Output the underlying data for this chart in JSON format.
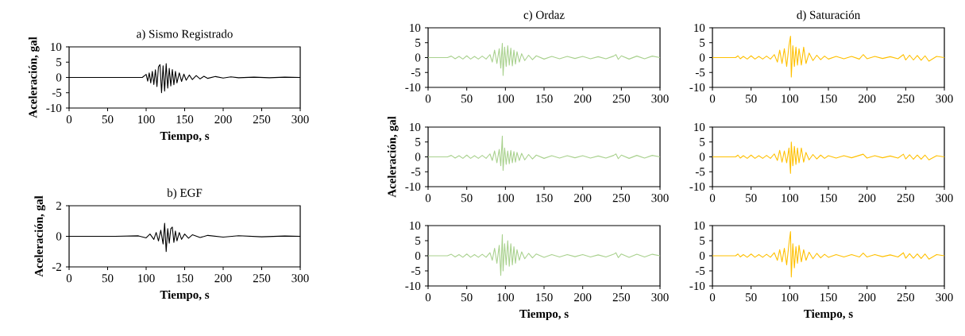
{
  "chart_data": [
    {
      "type": "line",
      "title": "a) Sismo Registrado",
      "xlabel": "Tiempo, s",
      "ylabel": "Aceleración, gal",
      "xlim": [
        0,
        300
      ],
      "ylim": [
        -10,
        10
      ],
      "xticks": [
        0,
        50,
        100,
        150,
        200,
        250,
        300
      ],
      "yticks": [
        -10,
        -5,
        0,
        5,
        10
      ],
      "series": [
        {
          "color": "#000000",
          "x": [
            0,
            95,
            100,
            102,
            104,
            106,
            108,
            110,
            112,
            114,
            116,
            118,
            120,
            122,
            124,
            126,
            128,
            130,
            132,
            134,
            136,
            138,
            140,
            143,
            146,
            149,
            152,
            156,
            160,
            165,
            170,
            175,
            180,
            190,
            200,
            210,
            220,
            240,
            260,
            280,
            300
          ],
          "values": [
            0,
            0,
            1.0,
            -1.2,
            1.5,
            -1.8,
            2.0,
            -2.3,
            2.5,
            -3.0,
            3.5,
            4.2,
            -5.0,
            3.8,
            -4.5,
            4.5,
            -3.5,
            3.0,
            -2.8,
            2.6,
            -2.4,
            2.0,
            -1.8,
            1.5,
            -1.3,
            1.1,
            -0.9,
            0.8,
            -0.7,
            0.6,
            -0.5,
            0.4,
            -0.3,
            0.3,
            -0.2,
            0.2,
            -0.1,
            0.1,
            -0.1,
            0.1,
            0
          ]
        }
      ]
    },
    {
      "type": "line",
      "title": "b) EGF",
      "xlabel": "Tiempo, s",
      "ylabel": "Aceleración, gal",
      "xlim": [
        0,
        300
      ],
      "ylim": [
        -2,
        2
      ],
      "xticks": [
        0,
        50,
        100,
        150,
        200,
        250,
        300
      ],
      "yticks": [
        -2,
        0,
        2
      ],
      "series": [
        {
          "color": "#000000",
          "x": [
            0,
            60,
            90,
            100,
            105,
            110,
            113,
            116,
            119,
            122,
            124,
            126,
            128,
            130,
            132,
            134,
            136,
            138,
            140,
            143,
            146,
            150,
            155,
            160,
            170,
            180,
            200,
            220,
            250,
            280,
            300
          ],
          "values": [
            0,
            0,
            0.03,
            -0.1,
            0.15,
            -0.2,
            0.25,
            -0.3,
            0.4,
            -0.5,
            0.85,
            -1.0,
            0.5,
            -0.45,
            0.5,
            0.6,
            -0.4,
            0.35,
            -0.3,
            0.25,
            -0.2,
            0.15,
            -0.12,
            0.1,
            -0.08,
            0.06,
            -0.05,
            0.04,
            -0.03,
            0.02,
            0
          ]
        }
      ]
    },
    {
      "type": "line",
      "title": "c) Ordaz",
      "xlim": [
        0,
        300
      ],
      "ylim": [
        -10,
        10
      ],
      "xticks": [
        0,
        50,
        100,
        150,
        200,
        250,
        300
      ],
      "yticks": [
        -10,
        -5,
        0,
        5,
        10
      ],
      "series": [
        {
          "color": "#a9d18e",
          "x": [
            0,
            25,
            30,
            35,
            40,
            45,
            50,
            55,
            60,
            65,
            70,
            75,
            80,
            83,
            86,
            89,
            92,
            94,
            96,
            97,
            99,
            101,
            103,
            105,
            107,
            109,
            111,
            113,
            115,
            118,
            121,
            125,
            130,
            135,
            140,
            150,
            160,
            170,
            180,
            190,
            200,
            210,
            220,
            230,
            240,
            243,
            246,
            250,
            260,
            270,
            280,
            290,
            300
          ],
          "values": [
            0,
            0,
            0.5,
            -0.4,
            0.4,
            -0.5,
            0.6,
            -0.5,
            0.4,
            -0.5,
            0.5,
            -0.5,
            1.0,
            -1.5,
            2.5,
            -2.0,
            3.0,
            -3.5,
            4.8,
            -6.0,
            3.5,
            -3.0,
            4.0,
            -2.5,
            3.2,
            -2.8,
            2.5,
            -2.2,
            2.0,
            -1.5,
            1.3,
            -1.0,
            0.8,
            -0.7,
            0.6,
            -0.5,
            0.4,
            -0.4,
            0.4,
            -0.3,
            0.4,
            -0.4,
            0.3,
            -0.4,
            0.5,
            1.0,
            -0.6,
            0.6,
            -0.5,
            0.5,
            -0.4,
            0.5,
            0
          ]
        }
      ]
    },
    {
      "type": "line",
      "ylabel": "Aceleración, gal",
      "xlim": [
        0,
        300
      ],
      "ylim": [
        -10,
        10
      ],
      "xticks": [
        0,
        50,
        100,
        150,
        200,
        250,
        300
      ],
      "yticks": [
        -10,
        -5,
        0,
        5,
        10
      ],
      "series": [
        {
          "color": "#a9d18e",
          "x": [
            0,
            25,
            30,
            35,
            40,
            45,
            50,
            55,
            60,
            65,
            70,
            75,
            80,
            83,
            86,
            89,
            92,
            94,
            96,
            97,
            99,
            101,
            103,
            105,
            107,
            109,
            111,
            113,
            115,
            118,
            121,
            125,
            130,
            135,
            140,
            150,
            160,
            170,
            180,
            190,
            200,
            210,
            220,
            230,
            240,
            243,
            246,
            250,
            260,
            270,
            280,
            290,
            300
          ],
          "values": [
            0,
            0,
            0.5,
            -0.4,
            0.4,
            -0.5,
            0.6,
            -0.5,
            0.4,
            -0.5,
            0.5,
            -0.5,
            1.0,
            -1.2,
            2.0,
            -2.0,
            2.5,
            -3.0,
            7.0,
            -4.5,
            3.0,
            -2.5,
            2.0,
            -2.3,
            2.2,
            -2.0,
            1.8,
            -1.8,
            1.5,
            -1.2,
            1.2,
            -1.0,
            0.8,
            -0.7,
            0.6,
            -0.5,
            0.4,
            -0.4,
            0.4,
            -0.3,
            0.4,
            -0.4,
            0.3,
            -0.4,
            0.5,
            1.0,
            -0.6,
            0.6,
            -0.5,
            0.5,
            -0.4,
            0.5,
            0
          ]
        }
      ]
    },
    {
      "type": "line",
      "xlabel": "Tiempo, s",
      "xlim": [
        0,
        300
      ],
      "ylim": [
        -10,
        10
      ],
      "xticks": [
        0,
        50,
        100,
        150,
        200,
        250,
        300
      ],
      "yticks": [
        -10,
        -5,
        0,
        5,
        10
      ],
      "series": [
        {
          "color": "#a9d18e",
          "x": [
            0,
            25,
            30,
            35,
            40,
            45,
            50,
            55,
            60,
            65,
            70,
            75,
            80,
            83,
            86,
            89,
            92,
            94,
            96,
            97,
            99,
            101,
            103,
            105,
            107,
            109,
            111,
            113,
            115,
            118,
            121,
            125,
            130,
            135,
            140,
            150,
            160,
            170,
            180,
            190,
            200,
            210,
            220,
            230,
            240,
            243,
            246,
            250,
            260,
            270,
            280,
            290,
            300
          ],
          "values": [
            0,
            0,
            0.5,
            -0.4,
            0.4,
            -0.5,
            0.6,
            -0.5,
            0.4,
            -0.5,
            0.5,
            -0.5,
            1.0,
            -1.5,
            2.5,
            -2.5,
            3.5,
            -6.5,
            7.0,
            -5.0,
            4.0,
            -3.0,
            5.0,
            -3.5,
            4.0,
            -3.0,
            3.0,
            -2.5,
            2.0,
            -1.5,
            1.3,
            -1.0,
            0.8,
            -0.7,
            0.6,
            -0.5,
            0.4,
            -0.4,
            0.4,
            -0.3,
            0.4,
            -0.4,
            0.3,
            -0.4,
            0.5,
            1.0,
            -0.6,
            0.6,
            -0.5,
            0.5,
            -0.4,
            0.5,
            0
          ]
        }
      ]
    },
    {
      "type": "line",
      "title": "d) Saturación",
      "xlim": [
        0,
        300
      ],
      "ylim": [
        -10,
        10
      ],
      "xticks": [
        0,
        50,
        100,
        150,
        200,
        250,
        300
      ],
      "yticks": [
        -10,
        -5,
        0,
        5,
        10
      ],
      "series": [
        {
          "color": "#ffc000",
          "x": [
            0,
            30,
            33,
            36,
            40,
            45,
            50,
            55,
            60,
            65,
            70,
            75,
            80,
            84,
            87,
            90,
            93,
            96,
            99,
            101,
            102,
            104,
            106,
            108,
            110,
            112,
            115,
            118,
            121,
            125,
            130,
            135,
            140,
            145,
            150,
            160,
            170,
            180,
            190,
            195,
            200,
            210,
            220,
            230,
            240,
            247,
            250,
            255,
            260,
            265,
            270,
            275,
            280,
            290,
            300
          ],
          "values": [
            0,
            0,
            0.6,
            -0.4,
            0.4,
            -0.5,
            0.6,
            -0.5,
            0.4,
            -0.5,
            0.5,
            -0.5,
            1.0,
            -1.5,
            2.5,
            -2.0,
            3.0,
            -3.0,
            4.0,
            7.2,
            -6.5,
            4.0,
            -3.0,
            3.5,
            -2.5,
            3.0,
            -2.5,
            3.5,
            -2.0,
            1.5,
            -1.0,
            0.8,
            -0.7,
            0.5,
            -0.5,
            0.4,
            -0.4,
            0.4,
            -0.5,
            1.0,
            -0.4,
            0.4,
            -0.3,
            0.3,
            -0.4,
            1.0,
            -0.8,
            0.8,
            -0.8,
            0.7,
            -0.9,
            0.6,
            -1.2,
            0.4,
            0
          ]
        }
      ]
    },
    {
      "type": "line",
      "xlim": [
        0,
        300
      ],
      "ylim": [
        -10,
        10
      ],
      "xticks": [
        0,
        50,
        100,
        150,
        200,
        250,
        300
      ],
      "yticks": [
        -10,
        -5,
        0,
        5,
        10
      ],
      "series": [
        {
          "color": "#ffc000",
          "x": [
            0,
            30,
            33,
            36,
            40,
            45,
            50,
            55,
            60,
            65,
            70,
            75,
            80,
            84,
            87,
            90,
            93,
            96,
            99,
            101,
            102,
            104,
            106,
            108,
            110,
            112,
            115,
            118,
            121,
            125,
            130,
            135,
            140,
            145,
            150,
            160,
            170,
            180,
            190,
            195,
            200,
            210,
            220,
            230,
            240,
            247,
            250,
            255,
            260,
            265,
            270,
            275,
            280,
            290,
            300
          ],
          "values": [
            0,
            0,
            0.6,
            -0.4,
            0.4,
            -0.5,
            0.6,
            -0.5,
            0.4,
            -0.5,
            0.5,
            -0.5,
            1.0,
            -1.2,
            2.2,
            -1.8,
            2.0,
            -2.0,
            3.0,
            -5.5,
            5.0,
            -3.0,
            3.5,
            -2.5,
            3.0,
            -2.0,
            3.0,
            -1.8,
            1.5,
            -1.0,
            0.8,
            -0.7,
            0.6,
            -0.5,
            0.4,
            -0.4,
            0.4,
            -0.3,
            0.5,
            0.9,
            -0.4,
            0.4,
            -0.3,
            0.3,
            -0.4,
            0.9,
            -0.7,
            0.7,
            -0.8,
            0.6,
            -0.8,
            0.6,
            -1.0,
            0.4,
            0
          ]
        }
      ]
    },
    {
      "type": "line",
      "xlabel": "Tiempo, s",
      "xlim": [
        0,
        300
      ],
      "ylim": [
        -10,
        10
      ],
      "xticks": [
        0,
        50,
        100,
        150,
        200,
        250,
        300
      ],
      "yticks": [
        -10,
        -5,
        0,
        5,
        10
      ],
      "series": [
        {
          "color": "#ffc000",
          "x": [
            0,
            30,
            33,
            36,
            40,
            45,
            50,
            55,
            60,
            65,
            70,
            75,
            80,
            84,
            87,
            90,
            93,
            96,
            99,
            101,
            102,
            104,
            106,
            108,
            110,
            112,
            115,
            118,
            121,
            125,
            130,
            135,
            140,
            145,
            150,
            160,
            170,
            180,
            190,
            195,
            200,
            210,
            220,
            230,
            240,
            247,
            250,
            255,
            260,
            265,
            270,
            275,
            280,
            290,
            300
          ],
          "values": [
            0,
            0,
            0.6,
            -0.4,
            0.4,
            -0.5,
            0.6,
            -0.5,
            0.4,
            -0.5,
            0.5,
            -0.5,
            1.0,
            -1.5,
            2.0,
            -2.0,
            2.5,
            -3.0,
            4.0,
            8.0,
            -7.0,
            4.0,
            -4.0,
            3.0,
            -2.5,
            3.5,
            -2.0,
            2.0,
            -1.5,
            1.2,
            -1.0,
            0.8,
            -0.7,
            0.5,
            -0.5,
            0.4,
            -0.4,
            0.4,
            -0.4,
            0.9,
            -0.4,
            0.4,
            -0.3,
            0.3,
            -0.4,
            1.0,
            -0.8,
            0.7,
            -0.8,
            0.6,
            -0.9,
            0.6,
            -1.1,
            0.4,
            0
          ]
        }
      ]
    }
  ]
}
